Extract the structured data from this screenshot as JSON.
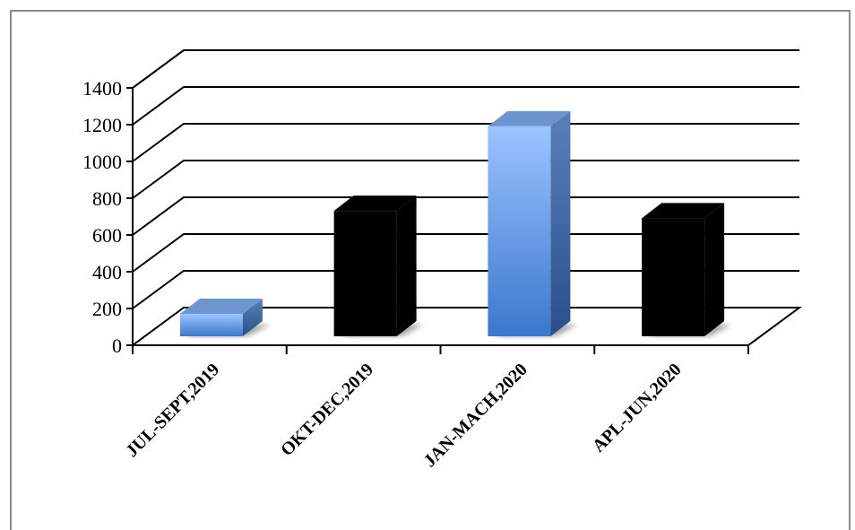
{
  "chart_data": {
    "type": "bar",
    "style": "3d-column",
    "categories": [
      "JUL-SEPT,2019",
      "OKT-DEC,2019",
      "JAN-MACH,2020",
      "APL-JUN,2020"
    ],
    "values": [
      210,
      770,
      1230,
      730
    ],
    "bar_colors": [
      "#5b8fd8",
      "#000000",
      "#5b8fd8",
      "#000000"
    ],
    "title": "",
    "xlabel": "",
    "ylabel": "",
    "ylim": [
      0,
      1400
    ],
    "yticks": [
      "0",
      "200",
      "400",
      "600",
      "800",
      "1000",
      "1200",
      "1400"
    ],
    "grid": true,
    "legend": "none"
  }
}
